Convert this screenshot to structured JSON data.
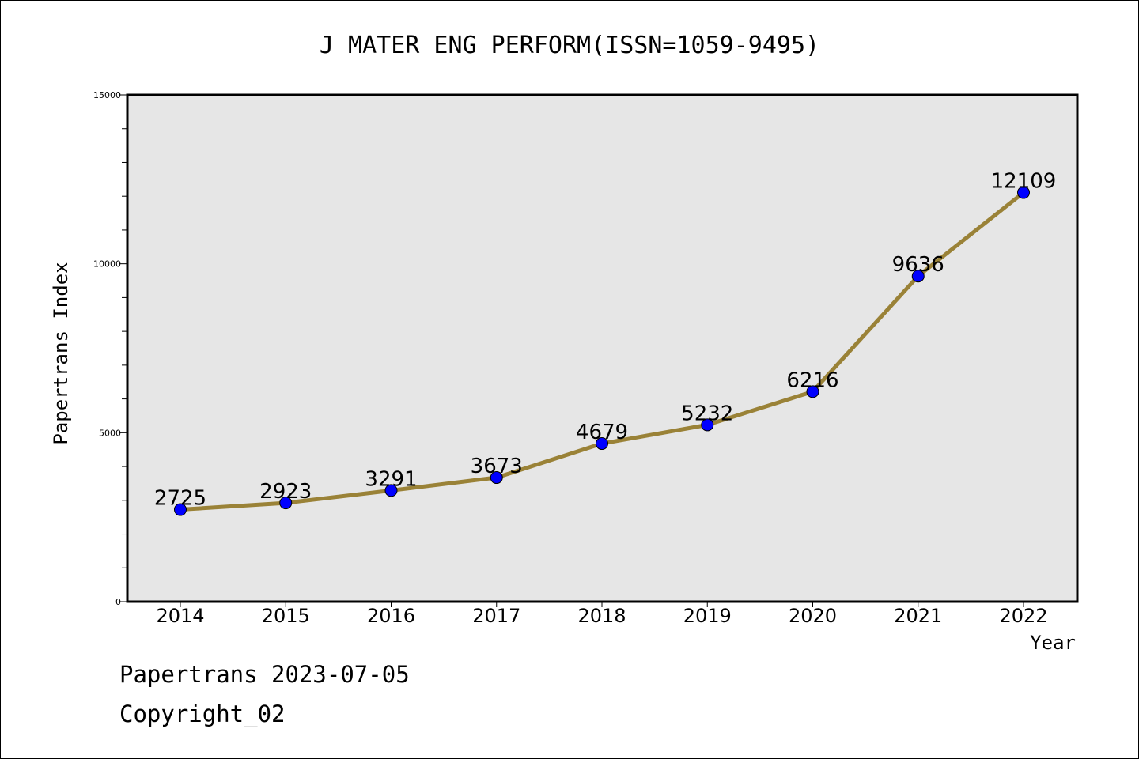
{
  "chart_data": {
    "type": "line",
    "title": "J MATER ENG PERFORM(ISSN=1059-9495)",
    "xlabel": "Year",
    "ylabel": "Papertrans Index",
    "categories": [
      "2014",
      "2015",
      "2016",
      "2017",
      "2018",
      "2019",
      "2020",
      "2021",
      "2022"
    ],
    "series": [
      {
        "values": [
          2725,
          2923,
          3291,
          3673,
          4679,
          5232,
          6216,
          9636,
          12109
        ]
      }
    ],
    "ylim": [
      0,
      15000
    ],
    "yticks": [
      "0",
      "5000",
      "10000",
      "15000"
    ],
    "ytick_values": [
      0,
      5000,
      10000,
      15000
    ],
    "grid": false,
    "colors": {
      "line": "#9a8237",
      "marker": "#0000ff",
      "plot_background": "#e6e6e6"
    }
  },
  "footer": {
    "line1": "Papertrans 2023-07-05",
    "line2": "Copyright_02"
  }
}
